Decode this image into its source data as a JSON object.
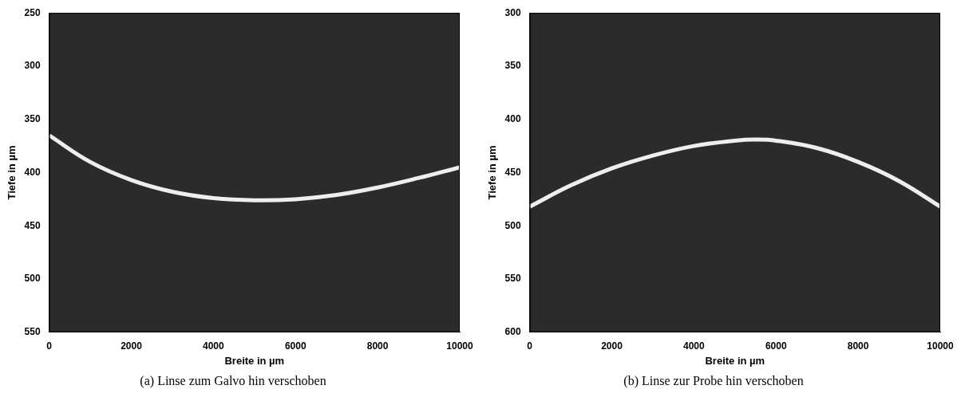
{
  "chart_data": [
    {
      "type": "line",
      "title": "(a) Linse zum Galvo hin verschoben",
      "x_label": "Breite in µm",
      "y_label": "Tiefe in µm",
      "x": [
        0,
        1000,
        2000,
        3000,
        4000,
        5000,
        6000,
        7000,
        8000,
        9000,
        10000
      ],
      "values": [
        365,
        390,
        407,
        418,
        424,
        426,
        425,
        421,
        414,
        405,
        395
      ],
      "color": "#eeeeee",
      "xlim": [
        0,
        10000
      ],
      "xticks": [
        0,
        2000,
        4000,
        6000,
        8000,
        10000
      ],
      "ylim": [
        550,
        250
      ],
      "yticks": [
        250,
        300,
        350,
        400,
        450,
        500,
        550
      ],
      "grid": false
    },
    {
      "type": "line",
      "title": "(b) Linse zur Probe hin verschoben",
      "x_label": "Breite in µm",
      "y_label": "Tiefe in µm",
      "x": [
        0,
        1000,
        2000,
        3000,
        4000,
        5000,
        5500,
        6000,
        7000,
        8000,
        9000,
        10000
      ],
      "values": [
        482,
        462,
        446,
        434,
        425,
        420,
        419,
        420,
        427,
        440,
        458,
        482
      ],
      "color": "#eeeeee",
      "xlim": [
        0,
        10000
      ],
      "xticks": [
        0,
        2000,
        4000,
        6000,
        8000,
        10000
      ],
      "ylim": [
        600,
        300
      ],
      "yticks": [
        300,
        350,
        400,
        450,
        500,
        550,
        600
      ],
      "grid": false
    }
  ]
}
